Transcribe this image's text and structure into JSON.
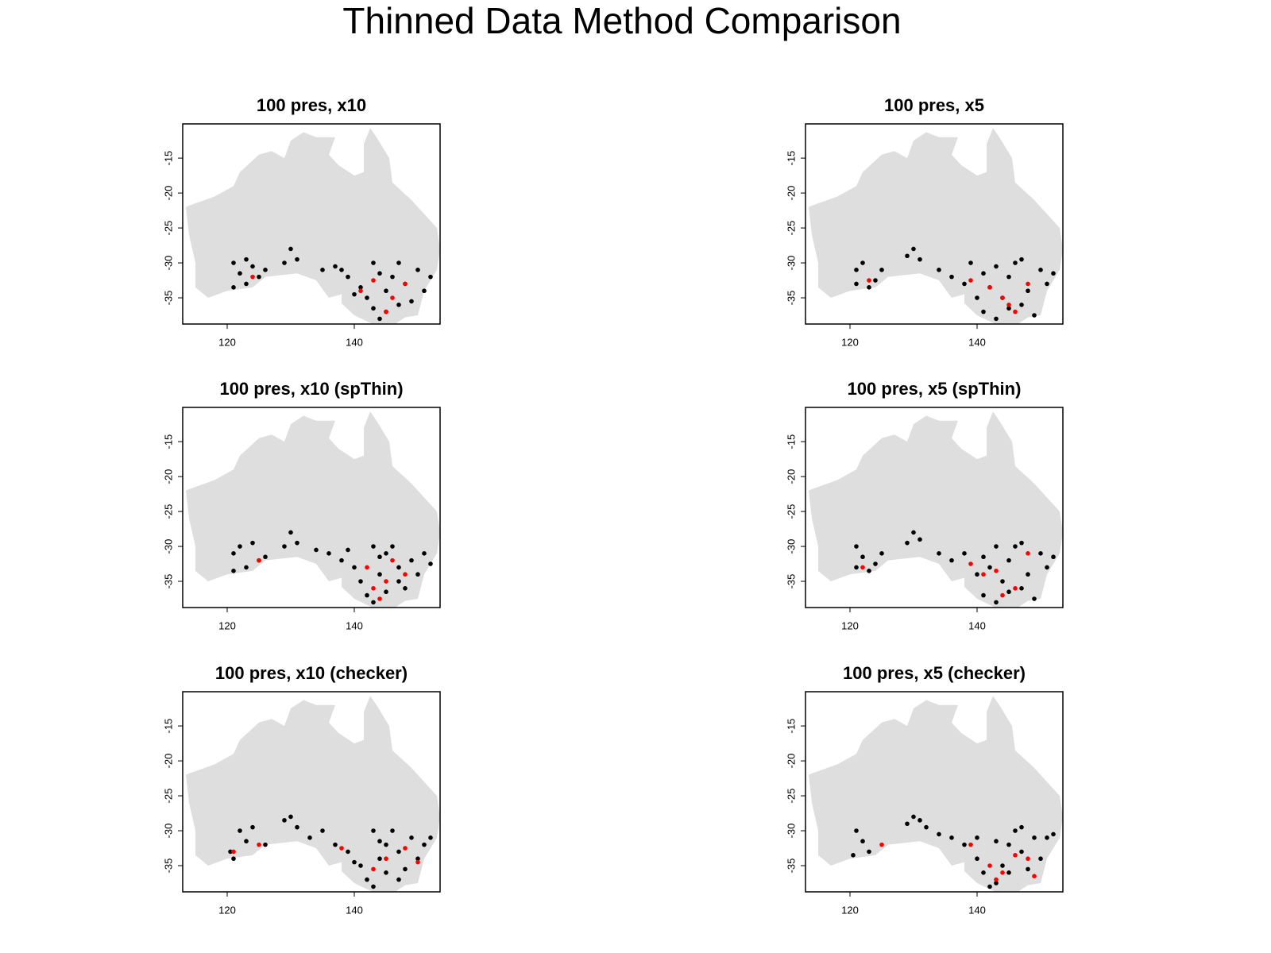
{
  "title": "Thinned Data Method Comparison",
  "chart_data": [
    {
      "type": "scatter",
      "title": "100 pres, x10",
      "xlim": [
        113,
        153.5
      ],
      "ylim": [
        -38.75,
        -10.1
      ],
      "xticks": [
        120,
        140
      ],
      "yticks": [
        -15,
        -20,
        -25,
        -30,
        -35
      ],
      "series": [
        {
          "color": "#000000",
          "x": [
            121,
            122,
            123,
            124,
            125,
            121,
            126,
            123,
            130,
            131,
            129,
            135,
            137,
            139,
            141,
            142,
            143,
            144,
            145,
            146,
            147,
            148,
            149,
            150,
            151,
            152,
            143,
            145,
            147,
            144,
            140,
            138
          ],
          "y": [
            -30,
            -31.5,
            -33,
            -30.5,
            -32,
            -33.5,
            -31,
            -29.5,
            -28,
            -29.5,
            -30,
            -31,
            -30.5,
            -32,
            -33.5,
            -35,
            -36.5,
            -38,
            -34,
            -32,
            -30,
            -33,
            -35.5,
            -31,
            -34,
            -32,
            -30,
            -37,
            -36,
            -31.5,
            -34.5,
            -31
          ]
        },
        {
          "color": "#ff0000",
          "x": [
            124,
            143,
            146,
            148,
            145,
            141
          ],
          "y": [
            -32,
            -32.5,
            -35,
            -33,
            -37,
            -34
          ]
        }
      ]
    },
    {
      "type": "scatter",
      "title": "100 pres, x5",
      "xlim": [
        113,
        153.5
      ],
      "ylim": [
        -38.75,
        -10.1
      ],
      "xticks": [
        120,
        140
      ],
      "yticks": [
        -15,
        -20,
        -25,
        -30,
        -35
      ],
      "series": [
        {
          "color": "#000000",
          "x": [
            121,
            122,
            124,
            125,
            121,
            123,
            130,
            131,
            129,
            134,
            136,
            138,
            140,
            141,
            142,
            143,
            144,
            145,
            146,
            147,
            148,
            149,
            150,
            151,
            152,
            143,
            145,
            147,
            141,
            139
          ],
          "y": [
            -31,
            -30,
            -32.5,
            -31,
            -33,
            -33.5,
            -28,
            -29.5,
            -29,
            -31,
            -32,
            -33,
            -35,
            -37,
            -33.5,
            -38,
            -35,
            -32,
            -30,
            -36,
            -34,
            -37.5,
            -31,
            -33,
            -31.5,
            -30.5,
            -36.5,
            -29.5,
            -31.5,
            -30
          ]
        },
        {
          "color": "#ff0000",
          "x": [
            123,
            139,
            142,
            145,
            146,
            148,
            144
          ],
          "y": [
            -32.5,
            -32.5,
            -33.5,
            -36,
            -37,
            -33,
            -35
          ]
        }
      ]
    },
    {
      "type": "scatter",
      "title": "100 pres, x10 (spThin)",
      "xlim": [
        113,
        153.5
      ],
      "ylim": [
        -38.75,
        -10.1
      ],
      "xticks": [
        120,
        140
      ],
      "yticks": [
        -15,
        -20,
        -25,
        -30,
        -35
      ],
      "series": [
        {
          "color": "#000000",
          "x": [
            121,
            122,
            123,
            124,
            125,
            121,
            126,
            130,
            131,
            129,
            134,
            136,
            138,
            140,
            141,
            142,
            143,
            144,
            145,
            146,
            147,
            148,
            149,
            150,
            151,
            152,
            143,
            145,
            147,
            144,
            139
          ],
          "y": [
            -31,
            -30,
            -33,
            -29.5,
            -32,
            -33.5,
            -31.5,
            -28,
            -29.5,
            -30,
            -30.5,
            -31,
            -32,
            -33,
            -35,
            -37,
            -38,
            -34,
            -31,
            -30,
            -33,
            -36,
            -32,
            -34,
            -31,
            -32.5,
            -30,
            -36.5,
            -35,
            -31.5,
            -30.5
          ]
        },
        {
          "color": "#ff0000",
          "x": [
            125,
            142,
            143,
            145,
            146,
            148,
            144
          ],
          "y": [
            -32,
            -33,
            -36,
            -35,
            -32,
            -34,
            -37.5
          ]
        }
      ]
    },
    {
      "type": "scatter",
      "title": "100 pres, x5 (spThin)",
      "xlim": [
        113,
        153.5
      ],
      "ylim": [
        -38.75,
        -10.1
      ],
      "xticks": [
        120,
        140
      ],
      "yticks": [
        -15,
        -20,
        -25,
        -30,
        -35
      ],
      "series": [
        {
          "color": "#000000",
          "x": [
            121,
            122,
            124,
            125,
            121,
            123,
            130,
            131,
            129,
            134,
            136,
            138,
            140,
            141,
            142,
            143,
            144,
            145,
            146,
            147,
            148,
            149,
            150,
            151,
            152,
            143,
            145,
            147,
            141
          ],
          "y": [
            -30,
            -31.5,
            -32.5,
            -31,
            -33,
            -33.5,
            -28,
            -29,
            -29.5,
            -31,
            -32,
            -31,
            -34,
            -37,
            -33,
            -38,
            -35,
            -32,
            -30,
            -36,
            -34,
            -37.5,
            -31,
            -33,
            -31.5,
            -30,
            -36.5,
            -29.5,
            -31.5
          ]
        },
        {
          "color": "#ff0000",
          "x": [
            122,
            139,
            141,
            143,
            144,
            146,
            148
          ],
          "y": [
            -33,
            -32.5,
            -34,
            -33.5,
            -37,
            -36,
            -31
          ]
        }
      ]
    },
    {
      "type": "scatter",
      "title": "100 pres, x10 (checker)",
      "xlim": [
        113,
        153.5
      ],
      "ylim": [
        -38.75,
        -10.1
      ],
      "xticks": [
        120,
        140
      ],
      "yticks": [
        -15,
        -20,
        -25,
        -30,
        -35
      ],
      "series": [
        {
          "color": "#000000",
          "x": [
            120.5,
            122,
            123,
            124,
            126,
            121,
            130,
            131,
            129,
            133,
            135,
            137,
            139,
            141,
            142,
            143,
            144,
            145,
            146,
            147,
            148,
            149,
            150,
            151,
            152,
            143,
            145,
            147,
            144,
            140
          ],
          "y": [
            -33,
            -30,
            -31.5,
            -29.5,
            -32,
            -34,
            -28,
            -29.5,
            -28.5,
            -31,
            -30,
            -32,
            -33,
            -35,
            -37,
            -38,
            -34,
            -32,
            -30,
            -33,
            -35.5,
            -31,
            -34,
            -32,
            -31,
            -30,
            -36,
            -37,
            -31.5,
            -34.5
          ]
        },
        {
          "color": "#ff0000",
          "x": [
            121,
            125,
            138,
            143,
            145,
            148,
            150
          ],
          "y": [
            -33,
            -32,
            -32.5,
            -35.5,
            -34,
            -32.5,
            -34.5
          ]
        }
      ]
    },
    {
      "type": "scatter",
      "title": "100 pres, x5 (checker)",
      "xlim": [
        113,
        153.5
      ],
      "ylim": [
        -38.75,
        -10.1
      ],
      "xticks": [
        120,
        140
      ],
      "yticks": [
        -15,
        -20,
        -25,
        -30,
        -35
      ],
      "series": [
        {
          "color": "#000000",
          "x": [
            121,
            122,
            123,
            120.5,
            129,
            130,
            131,
            132,
            134,
            136,
            138,
            140,
            141,
            142,
            143,
            144,
            145,
            146,
            147,
            148,
            149,
            150,
            151,
            152,
            143,
            145,
            147,
            140
          ],
          "y": [
            -30,
            -31.5,
            -33,
            -33.5,
            -29,
            -28,
            -28.5,
            -29.5,
            -30.5,
            -31,
            -32,
            -34,
            -36,
            -38,
            -37.5,
            -35,
            -32,
            -30,
            -33,
            -35.5,
            -31,
            -34,
            -31,
            -30.5,
            -31.5,
            -36,
            -29.5,
            -31
          ]
        },
        {
          "color": "#ff0000",
          "x": [
            125,
            139,
            142,
            143,
            144,
            146,
            148,
            149
          ],
          "y": [
            -32,
            -32,
            -35,
            -37,
            -36,
            -33.5,
            -34,
            -36.5
          ]
        }
      ]
    }
  ]
}
